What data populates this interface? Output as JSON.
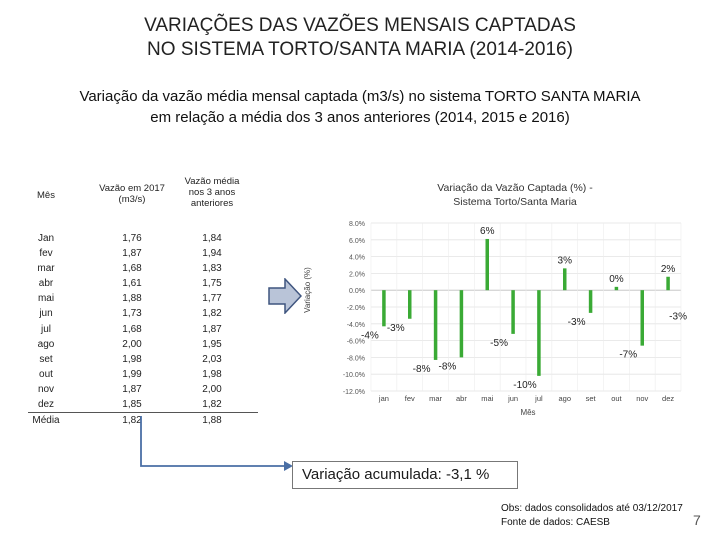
{
  "title": {
    "line1": "VARIAÇÕES DAS VAZÕES MENSAIS CAPTADAS",
    "line2": "NO SISTEMA TORTO/SANTA MARIA (2014-2016)"
  },
  "subtitle": {
    "line1": "Variação da vazão média mensal captada (m3/s) no sistema TORTO SANTA MARIA",
    "line2": "em relação a média dos 3 anos anteriores (2014, 2015 e 2016)"
  },
  "table": {
    "headers": {
      "col1": "Mês",
      "col2a": "Vazão em 2017",
      "col2b": "(m3/s)",
      "col3a": "Vazão média",
      "col3b": "nos 3 anos",
      "col3c": "anteriores"
    },
    "rows": [
      {
        "month": "Jan",
        "v2017": "1,76",
        "avg3": "1,84"
      },
      {
        "month": "fev",
        "v2017": "1,87",
        "avg3": "1,94"
      },
      {
        "month": "mar",
        "v2017": "1,68",
        "avg3": "1,83"
      },
      {
        "month": "abr",
        "v2017": "1,61",
        "avg3": "1,75"
      },
      {
        "month": "mai",
        "v2017": "1,88",
        "avg3": "1,77"
      },
      {
        "month": "jun",
        "v2017": "1,73",
        "avg3": "1,82"
      },
      {
        "month": "jul",
        "v2017": "1,68",
        "avg3": "1,87"
      },
      {
        "month": "ago",
        "v2017": "2,00",
        "avg3": "1,95"
      },
      {
        "month": "set",
        "v2017": "1,98",
        "avg3": "2,03"
      },
      {
        "month": "out",
        "v2017": "1,99",
        "avg3": "1,98"
      },
      {
        "month": "nov",
        "v2017": "1,87",
        "avg3": "2,00"
      },
      {
        "month": "dez",
        "v2017": "1,85",
        "avg3": "1,82"
      }
    ],
    "total": {
      "month": "Média",
      "v2017": "1,82",
      "avg3": "1,88"
    }
  },
  "chart_data": {
    "type": "bar",
    "title_line1": "Variação da Vazão Captada (%) -",
    "title_line2": "Sistema Torto/Santa Maria",
    "xlabel": "Mês",
    "ylabel": "Variação (%)",
    "ylim": [
      -12,
      8
    ],
    "yticks": [
      8,
      6,
      4,
      2,
      0,
      -2,
      -4,
      -6,
      -8,
      -10,
      -12
    ],
    "ytick_labels": [
      "8.0%",
      "6.0%",
      "4.0%",
      "2.0%",
      "0.0%",
      "-2.0%",
      "-4.0%",
      "-6.0%",
      "-8.0%",
      "-10.0%",
      "-12.0%"
    ],
    "categories": [
      "jan",
      "fev",
      "mar",
      "abr",
      "mai",
      "jun",
      "jul",
      "ago",
      "set",
      "out",
      "nov",
      "dez"
    ],
    "values": [
      -4.3,
      -3.4,
      -8.3,
      -8.0,
      6.1,
      -5.2,
      -10.2,
      2.6,
      -2.7,
      0.4,
      -6.6,
      1.6
    ],
    "data_labels": [
      "-4%",
      "-3%",
      "-8%",
      "-8%",
      "6%",
      "-5%",
      "-10%",
      "3%",
      "-3%",
      "0%",
      "-7%",
      "2%"
    ],
    "extra_label": "-3%",
    "bar_color": "#3aaa35",
    "grid": true
  },
  "cumulative": "Variação acumulada: -3,1 %",
  "notes": {
    "line1": "Obs: dados consolidados até 03/12/2017",
    "line2": "Fonte de dados: CAESB"
  },
  "page_number": "7"
}
